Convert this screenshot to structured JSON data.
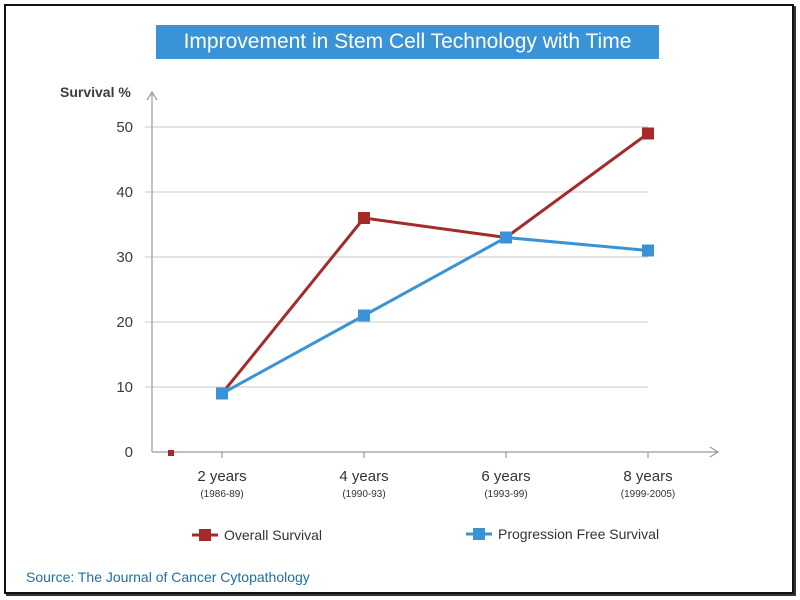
{
  "title": "Improvement in Stem Cell Technology with Time",
  "source": "Source: The Journal of Cancer Cytopathology",
  "chart_data": {
    "type": "line",
    "title": "Improvement in Stem Cell Technology with Time",
    "ylabel": "Survival %",
    "xlabel": "",
    "ylim": [
      0,
      50
    ],
    "yticks": [
      0,
      10,
      20,
      30,
      40,
      50
    ],
    "grid": true,
    "legend_position": "bottom",
    "categories": [
      "2 years",
      "4 years",
      "6 years",
      "8 years"
    ],
    "category_sublabels": [
      "(1986-89)",
      "(1990-93)",
      "(1993-99)",
      "(1999-2005)"
    ],
    "series": [
      {
        "name": "Overall Survival",
        "color": "#a52a2a",
        "values": [
          9,
          36,
          33,
          49
        ]
      },
      {
        "name": "Progression Free Survival",
        "color": "#3a93d6",
        "values": [
          9,
          21,
          33,
          31
        ]
      }
    ]
  }
}
